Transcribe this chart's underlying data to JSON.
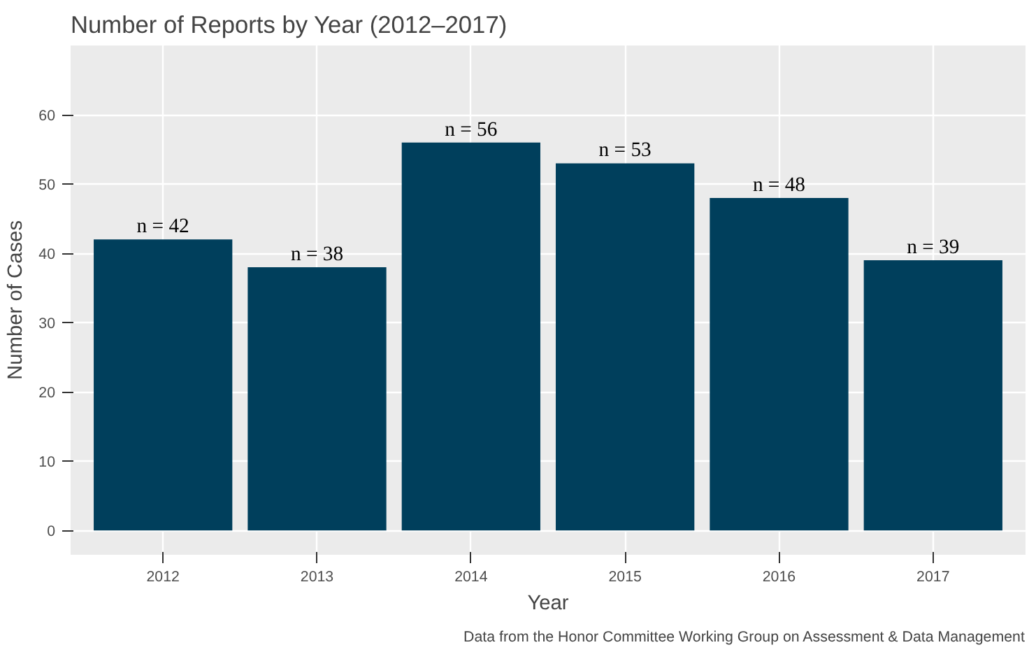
{
  "chart_data": {
    "type": "bar",
    "title": "Number of Reports by Year (2012–2017)",
    "xlabel": "Year",
    "ylabel": "Number of Cases",
    "categories": [
      "2012",
      "2013",
      "2014",
      "2015",
      "2016",
      "2017"
    ],
    "values": [
      42,
      38,
      56,
      53,
      48,
      39
    ],
    "value_labels": [
      "n = 42",
      "n = 38",
      "n = 56",
      "n = 53",
      "n = 48",
      "n = 39"
    ],
    "color": "#003f5c",
    "ylim": [
      -3.5,
      70
    ],
    "yticks": [
      0,
      10,
      20,
      30,
      40,
      50,
      60
    ],
    "grid": true,
    "annotations": [
      "Data from the Honor Committee Working Group on Assessment & Data Management"
    ]
  }
}
